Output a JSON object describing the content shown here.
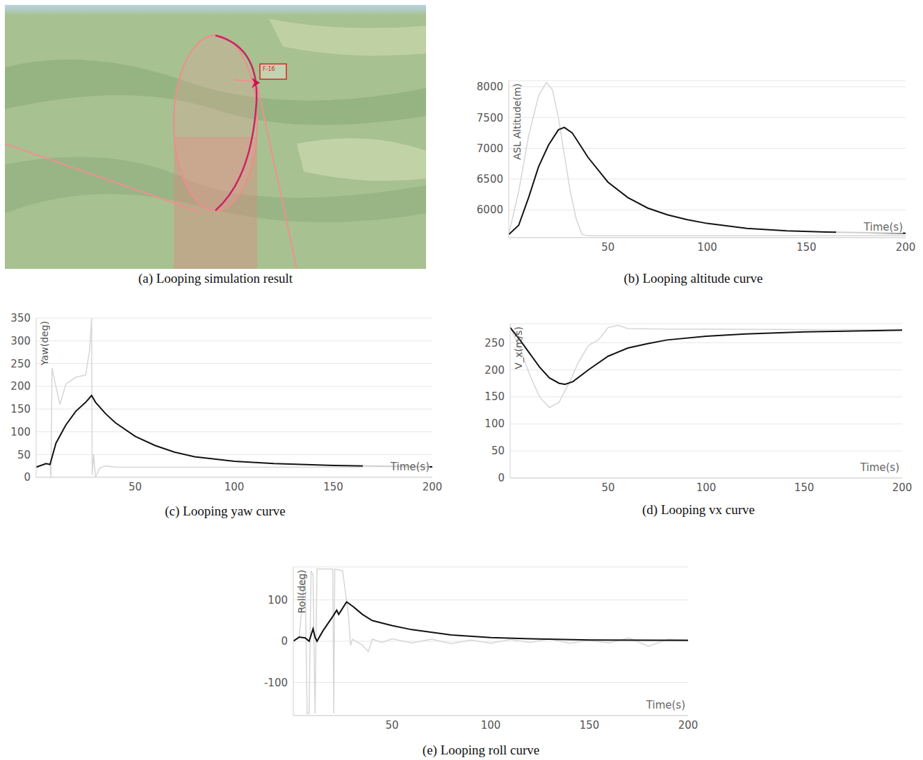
{
  "image": {
    "title": "(a) Looping simulation result",
    "label": "F-16"
  },
  "chart_data": [
    {
      "type": "line",
      "title": "(b) Looping altitude curve",
      "x_label": "Time(s)",
      "y_label": "ASL Altitude(m)",
      "xlim": [
        0,
        200
      ],
      "xticks": [
        50,
        100,
        150,
        200
      ],
      "ylim": [
        5550,
        8100
      ],
      "yticks": [
        6000,
        6500,
        7000,
        7500,
        8000
      ],
      "grid": true,
      "series": [
        {
          "color": "#d6d6d6",
          "x": [
            0,
            5,
            10,
            15,
            19,
            22,
            25,
            28,
            31,
            34,
            37,
            40,
            100,
            200
          ],
          "values": [
            5600,
            6300,
            7200,
            7850,
            8070,
            7950,
            7500,
            6900,
            6300,
            5850,
            5600,
            5580,
            5580,
            5580
          ]
        },
        {
          "color": "#111111",
          "x": [
            0,
            5,
            10,
            15,
            20,
            25,
            28,
            32,
            36,
            40,
            50,
            60,
            70,
            80,
            90,
            100,
            120,
            140,
            160,
            180,
            200
          ],
          "values": [
            5600,
            5750,
            6200,
            6700,
            7050,
            7300,
            7340,
            7250,
            7050,
            6850,
            6450,
            6200,
            6030,
            5920,
            5840,
            5780,
            5700,
            5660,
            5640,
            5630,
            5620
          ]
        }
      ]
    },
    {
      "type": "line",
      "title": "(c) Looping yaw curve",
      "x_label": "Time(s)",
      "y_label": "Yaw(deg)",
      "xlim": [
        0,
        200
      ],
      "xticks": [
        50,
        100,
        150,
        200
      ],
      "ylim": [
        0,
        350
      ],
      "yticks": [
        0,
        50,
        100,
        150,
        200,
        250,
        300,
        350
      ],
      "grid": true,
      "series": [
        {
          "color": "#d6d6d6",
          "x": [
            0,
            7,
            7.5,
            8,
            9,
            12,
            15,
            20,
            25,
            27,
            28,
            28.3,
            29,
            30,
            32,
            35,
            40,
            200
          ],
          "values": [
            25,
            30,
            0,
            240,
            220,
            160,
            205,
            220,
            225,
            280,
            350,
            5,
            50,
            0,
            20,
            25,
            22,
            22
          ]
        },
        {
          "color": "#111111",
          "x": [
            0,
            5,
            7,
            10,
            15,
            20,
            25,
            28,
            30,
            35,
            40,
            50,
            60,
            70,
            80,
            100,
            120,
            150,
            180,
            200
          ],
          "values": [
            22,
            30,
            28,
            75,
            115,
            145,
            165,
            180,
            165,
            140,
            120,
            90,
            70,
            55,
            45,
            35,
            30,
            26,
            24,
            23
          ]
        }
      ]
    },
    {
      "type": "line",
      "title": "(d) Looping vx curve",
      "x_label": "Time(s)",
      "y_label": "V_x(m/s)",
      "xlim": [
        0,
        200
      ],
      "xticks": [
        50,
        100,
        150,
        200
      ],
      "ylim": [
        0,
        285
      ],
      "yticks": [
        0,
        50,
        100,
        150,
        200,
        250
      ],
      "grid": true,
      "series": [
        {
          "color": "#d6d6d6",
          "x": [
            0,
            5,
            10,
            15,
            20,
            25,
            30,
            35,
            40,
            45,
            50,
            55,
            60,
            80,
            100,
            150,
            200
          ],
          "values": [
            278,
            240,
            190,
            150,
            130,
            140,
            175,
            215,
            245,
            255,
            278,
            282,
            276,
            275,
            275,
            274,
            274
          ]
        },
        {
          "color": "#111111",
          "x": [
            0,
            5,
            10,
            15,
            20,
            25,
            28,
            32,
            40,
            50,
            60,
            70,
            80,
            100,
            120,
            150,
            200
          ],
          "values": [
            278,
            255,
            230,
            205,
            185,
            175,
            173,
            178,
            200,
            225,
            240,
            248,
            255,
            262,
            266,
            270,
            273
          ]
        }
      ]
    },
    {
      "type": "line",
      "title": "(e) Looping roll curve",
      "x_label": "Time(s)",
      "y_label": "Roll(deg)",
      "xlim": [
        0,
        200
      ],
      "xticks": [
        50,
        100,
        150,
        200
      ],
      "ylim": [
        -180,
        180
      ],
      "yticks": [
        -100,
        0,
        100
      ],
      "grid": true,
      "series": [
        {
          "color": "#d6d6d6",
          "x": [
            0,
            3,
            6,
            7,
            8,
            9,
            10,
            11,
            12,
            20,
            20.5,
            21,
            25,
            28,
            29,
            30,
            35,
            38,
            40,
            45,
            50,
            60,
            70,
            80,
            90,
            100,
            110,
            120,
            130,
            140,
            150,
            160,
            170,
            180,
            190,
            200
          ],
          "values": [
            0,
            10,
            170,
            -175,
            -175,
            170,
            160,
            -175,
            175,
            175,
            -175,
            175,
            170,
            60,
            -10,
            5,
            -10,
            -25,
            5,
            -3,
            6,
            -4,
            5,
            -6,
            3,
            -5,
            4,
            -3,
            6,
            -5,
            2,
            -4,
            8,
            -12,
            5,
            3
          ]
        },
        {
          "color": "#111111",
          "x": [
            0,
            3,
            6,
            8,
            10,
            11,
            12,
            15,
            20,
            22,
            23,
            27,
            30,
            35,
            40,
            50,
            60,
            80,
            100,
            120,
            150,
            200
          ],
          "values": [
            0,
            10,
            8,
            0,
            30,
            10,
            0,
            25,
            60,
            75,
            65,
            95,
            85,
            65,
            50,
            38,
            28,
            15,
            9,
            6,
            3,
            2
          ]
        }
      ]
    }
  ]
}
